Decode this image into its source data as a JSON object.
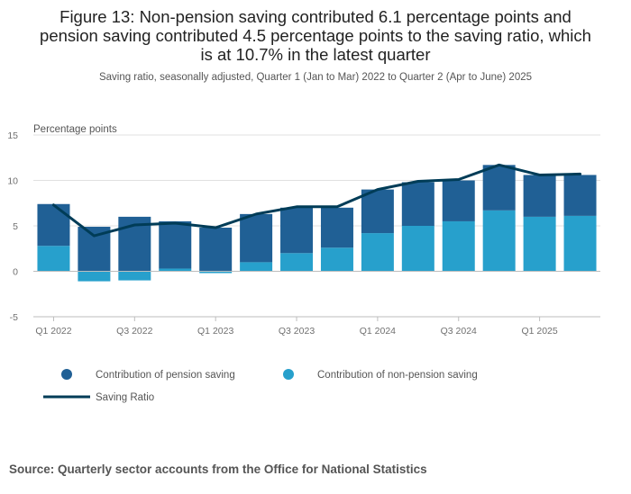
{
  "title_lines": [
    "Figure 13: Non-pension saving contributed 6.1 percentage points and",
    "pension saving contributed 4.5 percentage points to the saving ratio, which",
    "is at 10.7% in the latest quarter"
  ],
  "subtitle": "Saving ratio, seasonally adjusted, Quarter 1 (Jan to Mar) 2022 to Quarter 2 (Apr to June) 2025",
  "source": "Source: Quarterly sector accounts from the Office for National Statistics",
  "colors": {
    "pension": "#206095",
    "non_pension": "#27a0cc",
    "ratio": "#003c57",
    "grid": "#e0e0e0",
    "axis_text": "#707070"
  },
  "chart_data": {
    "type": "bar",
    "stacked": true,
    "ylabel": "Percentage points",
    "ylim": [
      -5,
      15
    ],
    "yticks": [
      -5,
      0,
      5,
      10,
      15
    ],
    "categories": [
      "Q1 2022",
      "Q2 2022",
      "Q3 2022",
      "Q4 2022",
      "Q1 2023",
      "Q2 2023",
      "Q3 2023",
      "Q4 2023",
      "Q1 2024",
      "Q2 2024",
      "Q3 2024",
      "Q4 2024",
      "Q1 2025",
      "Q2 2025"
    ],
    "x_tick_labels": [
      "Q1 2022",
      "Q3 2022",
      "Q1 2023",
      "Q3 2023",
      "Q1 2024",
      "Q3 2024",
      "Q1 2025"
    ],
    "series": [
      {
        "name": "Contribution of pension saving",
        "kind": "bar",
        "values": [
          4.6,
          4.9,
          6.0,
          5.2,
          4.8,
          5.3,
          5.0,
          4.4,
          4.8,
          4.8,
          4.5,
          5.0,
          4.6,
          4.5
        ]
      },
      {
        "name": "Contribution of non-pension saving",
        "kind": "bar",
        "values": [
          2.8,
          -1.1,
          -1.0,
          0.3,
          -0.2,
          1.0,
          2.0,
          2.6,
          4.2,
          5.0,
          5.5,
          6.7,
          6.0,
          6.1
        ]
      },
      {
        "name": "Saving Ratio",
        "kind": "line",
        "values": [
          7.3,
          3.9,
          5.1,
          5.3,
          4.8,
          6.3,
          7.1,
          7.1,
          9.0,
          9.9,
          10.1,
          11.7,
          10.6,
          10.7
        ]
      }
    ],
    "legend": [
      {
        "label": "Contribution of pension saving",
        "symbol": "dot",
        "series": 0
      },
      {
        "label": "Contribution of non-pension saving",
        "symbol": "dot",
        "series": 1
      },
      {
        "label": "Saving Ratio",
        "symbol": "line",
        "series": 2
      }
    ],
    "legend_position": "bottom-left"
  }
}
